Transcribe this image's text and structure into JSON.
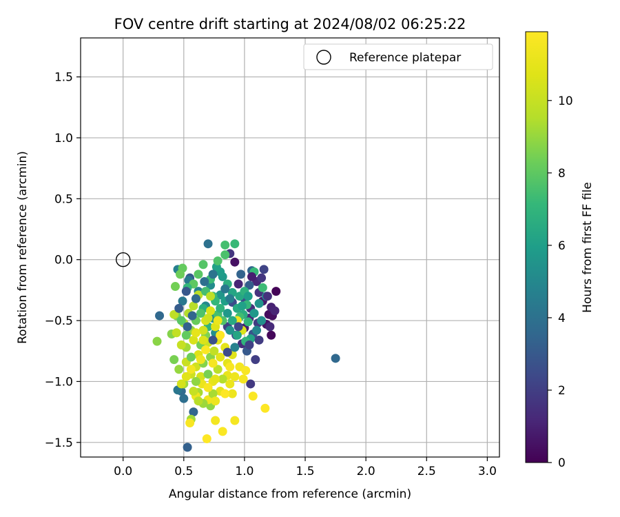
{
  "chart_data": {
    "type": "scatter",
    "title": "FOV centre drift starting at 2024/08/02 06:25:22",
    "xlabel": "Angular distance from reference (arcmin)",
    "ylabel": "Rotation from reference (arcmin)",
    "xlim": [
      -0.35,
      3.1
    ],
    "ylim": [
      -1.62,
      1.82
    ],
    "xticks": [
      "0.0",
      "0.5",
      "1.0",
      "1.5",
      "2.0",
      "2.5",
      "3.0"
    ],
    "yticks": [
      "−1.5",
      "−1.0",
      "−0.5",
      "0.0",
      "0.5",
      "1.0",
      "1.5"
    ],
    "grid": true,
    "legend": {
      "placement": "top-right",
      "entries": [
        "Reference platepar"
      ]
    },
    "reference_point": {
      "x": 0.0,
      "y": 0.0,
      "marker": "open-circle"
    },
    "colorbar": {
      "label": "Hours from first FF file",
      "colormap": "viridis",
      "range": [
        0,
        11.9
      ],
      "ticks": [
        "0",
        "2",
        "4",
        "6",
        "8",
        "10"
      ]
    },
    "series": [
      {
        "points": [
          [
            1.26,
            -0.26,
            0.1
          ],
          [
            1.2,
            -0.45,
            0.3
          ],
          [
            1.22,
            -0.62,
            0.2
          ],
          [
            1.23,
            -0.46,
            0.4
          ],
          [
            1.18,
            -0.53,
            0.6
          ],
          [
            1.22,
            -0.39,
            1.0
          ],
          [
            1.15,
            -0.34,
            0.8
          ],
          [
            1.1,
            -0.18,
            1.2
          ],
          [
            1.05,
            -0.4,
            1.5
          ],
          [
            1.09,
            -0.82,
            2.0
          ],
          [
            1.16,
            -0.08,
            2.2
          ],
          [
            1.12,
            -0.27,
            1.6
          ],
          [
            1.04,
            -0.48,
            1.3
          ],
          [
            1.0,
            -0.56,
            0.9
          ],
          [
            0.98,
            -0.69,
            1.4
          ],
          [
            0.95,
            -0.2,
            1.1
          ],
          [
            1.05,
            -1.02,
            1.8
          ],
          [
            0.92,
            -0.02,
            0.5
          ],
          [
            0.88,
            0.05,
            1.7
          ],
          [
            0.9,
            -0.35,
            2.5
          ],
          [
            1.07,
            -0.61,
            2.8
          ],
          [
            1.02,
            -0.75,
            3.0
          ],
          [
            0.93,
            -0.62,
            2.4
          ],
          [
            0.86,
            -0.55,
            2.1
          ],
          [
            1.11,
            -0.52,
            1.9
          ],
          [
            1.0,
            -0.32,
            2.6
          ],
          [
            1.04,
            -0.21,
            3.2
          ],
          [
            1.06,
            -0.09,
            3.5
          ],
          [
            1.75,
            -0.81,
            3.6
          ],
          [
            0.97,
            -0.12,
            3.4
          ],
          [
            0.55,
            -0.15,
            3.1
          ],
          [
            0.53,
            -1.54,
            3.3
          ],
          [
            0.58,
            -1.25,
            3.5
          ],
          [
            0.48,
            -1.08,
            3.7
          ],
          [
            0.5,
            -1.14,
            3.9
          ],
          [
            0.3,
            -0.46,
            3.6
          ],
          [
            0.7,
            0.13,
            4.0
          ],
          [
            0.45,
            -1.07,
            4.2
          ],
          [
            0.49,
            -0.34,
            4.3
          ],
          [
            0.45,
            -0.08,
            4.6
          ],
          [
            0.54,
            -0.17,
            4.4
          ],
          [
            0.62,
            -0.26,
            4.8
          ],
          [
            0.68,
            -0.38,
            5.0
          ],
          [
            0.72,
            -0.21,
            5.2
          ],
          [
            0.74,
            -0.48,
            5.4
          ],
          [
            0.76,
            -0.6,
            5.3
          ],
          [
            0.8,
            -0.29,
            5.6
          ],
          [
            0.82,
            -0.14,
            5.8
          ],
          [
            0.8,
            -0.1,
            5.9
          ],
          [
            0.77,
            -0.06,
            6.1
          ],
          [
            0.84,
            -0.34,
            6.0
          ],
          [
            0.86,
            -0.44,
            5.7
          ],
          [
            0.88,
            -0.58,
            5.5
          ],
          [
            0.9,
            -0.27,
            6.3
          ],
          [
            0.94,
            -0.4,
            6.5
          ],
          [
            0.96,
            -0.3,
            6.4
          ],
          [
            0.99,
            -0.45,
            6.6
          ],
          [
            1.0,
            -0.26,
            6.8
          ],
          [
            1.05,
            -0.65,
            6.2
          ],
          [
            1.01,
            -0.67,
            6.9
          ],
          [
            1.03,
            -0.51,
            7.0
          ],
          [
            1.02,
            -0.37,
            7.1
          ],
          [
            1.08,
            -0.1,
            7.2
          ],
          [
            1.15,
            -0.23,
            7.3
          ],
          [
            0.96,
            -0.47,
            7.4
          ],
          [
            0.92,
            0.13,
            7.2
          ],
          [
            0.84,
            0.12,
            7.5
          ],
          [
            0.84,
            0.04,
            7.6
          ],
          [
            0.78,
            -0.01,
            7.7
          ],
          [
            0.66,
            -0.04,
            7.8
          ],
          [
            0.62,
            -0.12,
            7.9
          ],
          [
            0.58,
            -0.2,
            8.0
          ],
          [
            0.53,
            -0.23,
            7.1
          ],
          [
            0.49,
            -0.07,
            8.1
          ],
          [
            0.47,
            -0.12,
            8.3
          ],
          [
            0.43,
            -0.22,
            8.4
          ],
          [
            0.44,
            -0.46,
            8.6
          ],
          [
            0.4,
            -0.61,
            8.7
          ],
          [
            0.42,
            -0.82,
            8.5
          ],
          [
            0.28,
            -0.67,
            8.8
          ],
          [
            0.46,
            -0.9,
            9.0
          ],
          [
            0.5,
            -1.02,
            9.1
          ],
          [
            0.56,
            -1.31,
            9.2
          ],
          [
            0.62,
            -1.09,
            9.3
          ],
          [
            0.72,
            -1.2,
            8.9
          ],
          [
            0.66,
            -0.4,
            6.7
          ],
          [
            0.7,
            -0.55,
            6.9
          ],
          [
            0.74,
            -0.3,
            7.3
          ],
          [
            0.78,
            -0.45,
            7.5
          ],
          [
            0.82,
            -0.5,
            7.7
          ],
          [
            0.6,
            -0.5,
            8.2
          ],
          [
            0.64,
            -0.7,
            8.4
          ],
          [
            0.68,
            -0.62,
            8.6
          ],
          [
            0.72,
            -0.8,
            8.8
          ],
          [
            0.56,
            -0.58,
            9.0
          ],
          [
            0.52,
            -0.72,
            9.2
          ],
          [
            0.5,
            -0.52,
            9.4
          ],
          [
            0.54,
            -0.44,
            9.5
          ],
          [
            0.58,
            -0.38,
            9.6
          ],
          [
            0.62,
            -0.29,
            9.7
          ],
          [
            0.42,
            -0.45,
            9.8
          ],
          [
            0.44,
            -0.6,
            9.9
          ],
          [
            0.48,
            -0.7,
            10.0
          ],
          [
            0.52,
            -0.84,
            10.1
          ],
          [
            0.56,
            -0.94,
            10.2
          ],
          [
            0.6,
            -0.88,
            10.3
          ],
          [
            0.64,
            -0.96,
            10.4
          ],
          [
            0.68,
            -0.5,
            10.5
          ],
          [
            0.72,
            -0.42,
            10.6
          ],
          [
            0.76,
            -0.55,
            10.7
          ],
          [
            0.78,
            -0.66,
            10.8
          ],
          [
            0.8,
            -0.8,
            10.9
          ],
          [
            0.84,
            -0.72,
            11.0
          ],
          [
            0.86,
            -0.95,
            11.1
          ],
          [
            0.88,
            -1.02,
            11.2
          ],
          [
            0.9,
            -1.1,
            11.3
          ],
          [
            0.94,
            -0.5,
            11.4
          ],
          [
            0.98,
            -0.58,
            10.6
          ],
          [
            0.96,
            -0.88,
            11.5
          ],
          [
            0.99,
            -0.98,
            11.6
          ],
          [
            1.01,
            -0.91,
            11.7
          ],
          [
            1.07,
            -1.12,
            11.8
          ],
          [
            1.17,
            -1.22,
            11.9
          ],
          [
            0.92,
            -1.32,
            11.6
          ],
          [
            0.82,
            -1.41,
            11.8
          ],
          [
            0.69,
            -1.47,
            11.9
          ],
          [
            0.76,
            -1.32,
            11.5
          ],
          [
            0.55,
            -1.34,
            11.7
          ],
          [
            0.7,
            -1.15,
            11.4
          ],
          [
            0.6,
            -1.12,
            11.3
          ],
          [
            0.65,
            -1.02,
            11.2
          ],
          [
            0.74,
            -1.0,
            11.1
          ],
          [
            0.8,
            -1.08,
            11.0
          ],
          [
            0.86,
            -0.85,
            10.9
          ],
          [
            0.9,
            -0.78,
            10.8
          ],
          [
            0.62,
            -0.78,
            10.7
          ],
          [
            0.58,
            -0.66,
            10.5
          ],
          [
            0.66,
            -0.58,
            10.3
          ],
          [
            0.7,
            -0.68,
            10.1
          ],
          [
            0.75,
            -0.75,
            9.9
          ],
          [
            0.78,
            -0.9,
            9.7
          ],
          [
            0.82,
            -0.98,
            9.5
          ],
          [
            0.74,
            -1.1,
            9.3
          ],
          [
            0.66,
            -1.18,
            9.1
          ],
          [
            0.6,
            -1.0,
            8.9
          ],
          [
            0.66,
            -0.85,
            8.7
          ],
          [
            0.7,
            -0.94,
            8.5
          ],
          [
            0.56,
            -0.8,
            8.3
          ],
          [
            0.52,
            -0.62,
            8.1
          ],
          [
            0.48,
            -0.5,
            7.9
          ],
          [
            0.64,
            -0.44,
            7.7
          ],
          [
            0.68,
            -0.26,
            7.5
          ],
          [
            0.72,
            -0.16,
            7.3
          ],
          [
            0.76,
            -0.34,
            7.1
          ],
          [
            0.8,
            -0.4,
            6.9
          ],
          [
            0.86,
            -0.2,
            6.7
          ],
          [
            0.9,
            -0.5,
            6.5
          ],
          [
            0.94,
            -0.62,
            6.3
          ],
          [
            0.98,
            -0.38,
            6.1
          ],
          [
            1.03,
            -0.3,
            5.9
          ],
          [
            1.08,
            -0.44,
            5.7
          ],
          [
            1.12,
            -0.36,
            5.5
          ],
          [
            1.14,
            -0.5,
            5.3
          ],
          [
            1.18,
            -0.3,
            5.1
          ],
          [
            1.1,
            -0.58,
            4.9
          ],
          [
            0.92,
            -0.72,
            4.7
          ],
          [
            0.88,
            -0.32,
            4.5
          ],
          [
            0.84,
            -0.24,
            4.3
          ],
          [
            0.74,
            -0.12,
            4.1
          ],
          [
            0.67,
            -0.18,
            3.9
          ],
          [
            0.6,
            -0.32,
            3.7
          ],
          [
            0.57,
            -0.46,
            3.5
          ],
          [
            0.53,
            -0.55,
            3.3
          ],
          [
            0.46,
            -0.4,
            3.1
          ],
          [
            0.52,
            -0.26,
            2.9
          ],
          [
            0.74,
            -0.66,
            2.7
          ],
          [
            0.86,
            -0.76,
            2.5
          ],
          [
            0.95,
            -0.55,
            2.3
          ],
          [
            1.04,
            -0.7,
            2.1
          ],
          [
            1.12,
            -0.66,
            1.9
          ],
          [
            1.14,
            -0.15,
            1.7
          ],
          [
            1.19,
            -0.3,
            1.5
          ],
          [
            1.21,
            -0.55,
            1.3
          ],
          [
            1.25,
            -0.42,
            1.1
          ],
          [
            1.06,
            -0.14,
            0.9
          ],
          [
            0.72,
            -0.3,
            9.8
          ],
          [
            0.7,
            -0.48,
            10.2
          ],
          [
            0.66,
            -0.66,
            10.6
          ],
          [
            0.6,
            -0.6,
            11.0
          ],
          [
            0.64,
            -0.82,
            11.4
          ],
          [
            0.68,
            -0.74,
            11.8
          ],
          [
            0.74,
            -0.85,
            11.6
          ],
          [
            0.78,
            -0.5,
            11.2
          ],
          [
            0.8,
            -0.62,
            11.9
          ],
          [
            0.56,
            -0.9,
            11.5
          ],
          [
            0.52,
            -0.96,
            10.8
          ],
          [
            0.48,
            -1.02,
            10.4
          ],
          [
            0.58,
            -1.08,
            10.0
          ],
          [
            0.62,
            -1.16,
            9.6
          ],
          [
            0.7,
            -1.05,
            11.7
          ],
          [
            0.76,
            -1.16,
            11.3
          ],
          [
            0.84,
            -1.1,
            11.9
          ],
          [
            0.88,
            -0.88,
            11.7
          ],
          [
            0.92,
            -0.96,
            11.3
          ],
          [
            0.76,
            -0.98,
            10.9
          ]
        ]
      }
    ]
  }
}
